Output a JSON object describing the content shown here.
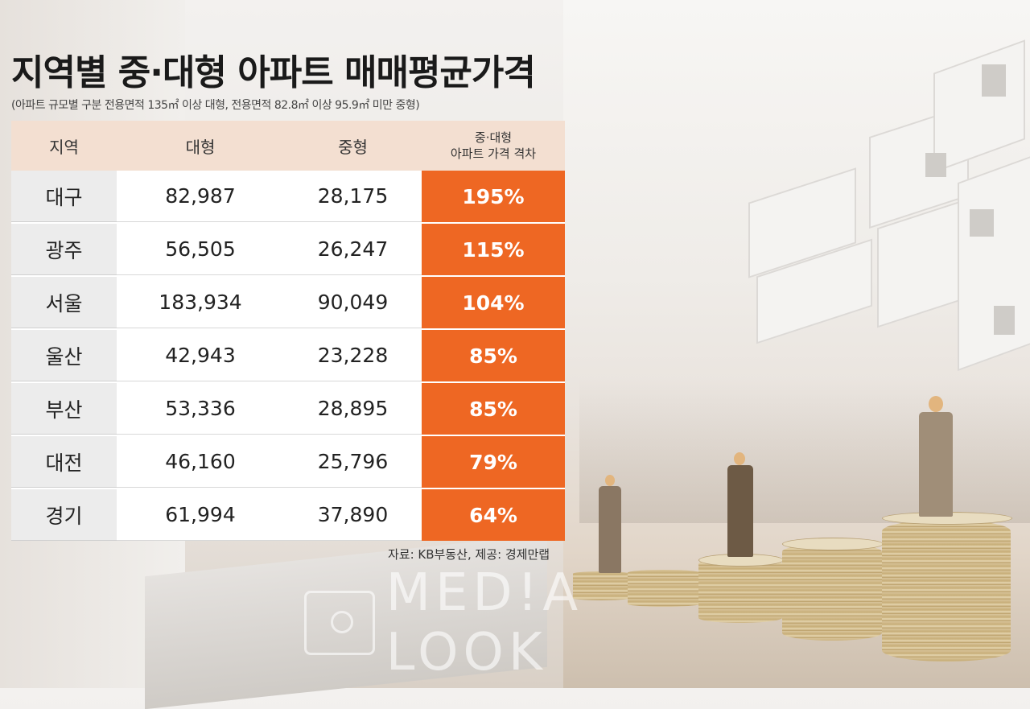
{
  "title": "지역별 중·대형 아파트 매매평균가격",
  "subtitle": "(아파트 규모별 구분 전용면적 135㎡ 이상 대형, 전용면적 82.8㎡ 이상 95.9㎡ 미만 중형)",
  "source": "자료: KB부동산, 제공: 경제만랩",
  "watermark": "MED!A LOOK",
  "colors": {
    "accent": "#ee6723",
    "header_bg": "#f3dfd1",
    "region_bg": "#ececec"
  },
  "chart_data": {
    "type": "table",
    "title": "지역별 중·대형 아파트 매매평균가격",
    "columns": [
      "지역",
      "대형",
      "중형",
      "중·대형",
      "아파트 가격 격차"
    ],
    "header": {
      "region": "지역",
      "large": "대형",
      "mid": "중형",
      "gap_line1": "중·대형",
      "gap_line2": "아파트 가격 격차"
    },
    "rows": [
      {
        "region": "대구",
        "large": "82,987",
        "mid": "28,175",
        "gap": "195%"
      },
      {
        "region": "광주",
        "large": "56,505",
        "mid": "26,247",
        "gap": "115%"
      },
      {
        "region": "서울",
        "large": "183,934",
        "mid": "90,049",
        "gap": "104%"
      },
      {
        "region": "울산",
        "large": "42,943",
        "mid": "23,228",
        "gap": "85%"
      },
      {
        "region": "부산",
        "large": "53,336",
        "mid": "28,895",
        "gap": "85%"
      },
      {
        "region": "대전",
        "large": "46,160",
        "mid": "25,796",
        "gap": "79%"
      },
      {
        "region": "경기",
        "large": "61,994",
        "mid": "37,890",
        "gap": "64%"
      }
    ]
  }
}
